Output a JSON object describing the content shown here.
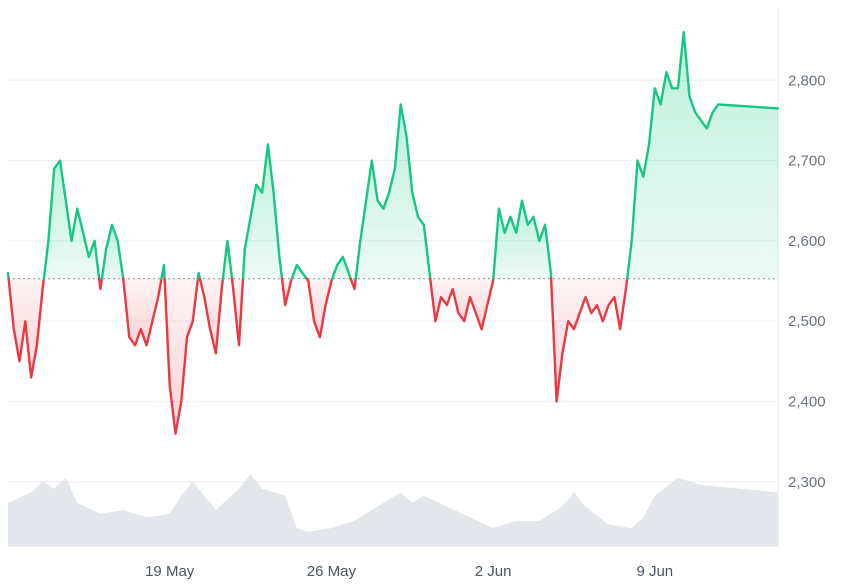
{
  "chart_data": {
    "type": "area",
    "title": "",
    "xlabel": "",
    "ylabel": "",
    "baseline": 2553,
    "ylim": [
      2220,
      2890
    ],
    "y_ticks": [
      2300,
      2400,
      2500,
      2600,
      2700,
      2800
    ],
    "y_tick_labels": [
      "2,300",
      "2,400",
      "2,500",
      "2,600",
      "2,700",
      "2,800"
    ],
    "x_ticks": [
      {
        "label": "19 May",
        "date": "2025-05-19"
      },
      {
        "label": "26 May",
        "date": "2025-05-26"
      },
      {
        "label": "2 Jun",
        "date": "2025-06-02"
      },
      {
        "label": "9 Jun",
        "date": "2025-06-09"
      }
    ],
    "xlim": [
      "2025-05-12T00:00",
      "2025-06-14T08:00"
    ],
    "colors": {
      "up": "#16c784",
      "down": "#ea3943",
      "up_fill": "#d8f5e7",
      "down_fill": "#fbdcde",
      "volume": "#e3e6ea",
      "grid": "#eceef1",
      "axis": "#e5e7eb",
      "baseline": "#9ca3af"
    },
    "series": [
      {
        "values": [
          [
            "2025-05-12T00:00",
            2560
          ],
          [
            "2025-05-12T06:00",
            2490
          ],
          [
            "2025-05-12T12:00",
            2450
          ],
          [
            "2025-05-12T18:00",
            2500
          ],
          [
            "2025-05-13T00:00",
            2430
          ],
          [
            "2025-05-13T06:00",
            2470
          ],
          [
            "2025-05-13T12:00",
            2540
          ],
          [
            "2025-05-13T18:00",
            2600
          ],
          [
            "2025-05-14T00:00",
            2690
          ],
          [
            "2025-05-14T06:00",
            2700
          ],
          [
            "2025-05-14T12:00",
            2650
          ],
          [
            "2025-05-14T18:00",
            2600
          ],
          [
            "2025-05-15T00:00",
            2640
          ],
          [
            "2025-05-15T06:00",
            2610
          ],
          [
            "2025-05-15T12:00",
            2580
          ],
          [
            "2025-05-15T18:00",
            2600
          ],
          [
            "2025-05-16T00:00",
            2540
          ],
          [
            "2025-05-16T06:00",
            2590
          ],
          [
            "2025-05-16T12:00",
            2620
          ],
          [
            "2025-05-16T18:00",
            2600
          ],
          [
            "2025-05-17T00:00",
            2550
          ],
          [
            "2025-05-17T06:00",
            2480
          ],
          [
            "2025-05-17T12:00",
            2470
          ],
          [
            "2025-05-17T18:00",
            2490
          ],
          [
            "2025-05-18T00:00",
            2470
          ],
          [
            "2025-05-18T06:00",
            2500
          ],
          [
            "2025-05-18T12:00",
            2530
          ],
          [
            "2025-05-18T18:00",
            2570
          ],
          [
            "2025-05-19T00:00",
            2420
          ],
          [
            "2025-05-19T06:00",
            2360
          ],
          [
            "2025-05-19T12:00",
            2400
          ],
          [
            "2025-05-19T18:00",
            2480
          ],
          [
            "2025-05-20T00:00",
            2500
          ],
          [
            "2025-05-20T06:00",
            2560
          ],
          [
            "2025-05-20T12:00",
            2530
          ],
          [
            "2025-05-20T18:00",
            2490
          ],
          [
            "2025-05-21T00:00",
            2460
          ],
          [
            "2025-05-21T06:00",
            2540
          ],
          [
            "2025-05-21T12:00",
            2600
          ],
          [
            "2025-05-21T18:00",
            2540
          ],
          [
            "2025-05-22T00:00",
            2470
          ],
          [
            "2025-05-22T06:00",
            2590
          ],
          [
            "2025-05-22T12:00",
            2630
          ],
          [
            "2025-05-22T18:00",
            2670
          ],
          [
            "2025-05-23T00:00",
            2660
          ],
          [
            "2025-05-23T06:00",
            2720
          ],
          [
            "2025-05-23T12:00",
            2660
          ],
          [
            "2025-05-23T18:00",
            2580
          ],
          [
            "2025-05-24T00:00",
            2520
          ],
          [
            "2025-05-24T06:00",
            2550
          ],
          [
            "2025-05-24T12:00",
            2570
          ],
          [
            "2025-05-24T18:00",
            2560
          ],
          [
            "2025-05-25T00:00",
            2550
          ],
          [
            "2025-05-25T06:00",
            2500
          ],
          [
            "2025-05-25T12:00",
            2480
          ],
          [
            "2025-05-25T18:00",
            2520
          ],
          [
            "2025-05-26T00:00",
            2550
          ],
          [
            "2025-05-26T06:00",
            2570
          ],
          [
            "2025-05-26T12:00",
            2580
          ],
          [
            "2025-05-26T18:00",
            2560
          ],
          [
            "2025-05-27T00:00",
            2540
          ],
          [
            "2025-05-27T06:00",
            2600
          ],
          [
            "2025-05-27T12:00",
            2650
          ],
          [
            "2025-05-27T18:00",
            2700
          ],
          [
            "2025-05-28T00:00",
            2650
          ],
          [
            "2025-05-28T06:00",
            2640
          ],
          [
            "2025-05-28T12:00",
            2660
          ],
          [
            "2025-05-28T18:00",
            2690
          ],
          [
            "2025-05-29T00:00",
            2770
          ],
          [
            "2025-05-29T06:00",
            2730
          ],
          [
            "2025-05-29T12:00",
            2660
          ],
          [
            "2025-05-29T18:00",
            2630
          ],
          [
            "2025-05-30T00:00",
            2620
          ],
          [
            "2025-05-30T06:00",
            2560
          ],
          [
            "2025-05-30T12:00",
            2500
          ],
          [
            "2025-05-30T18:00",
            2530
          ],
          [
            "2025-05-31T00:00",
            2520
          ],
          [
            "2025-05-31T06:00",
            2540
          ],
          [
            "2025-05-31T12:00",
            2510
          ],
          [
            "2025-05-31T18:00",
            2500
          ],
          [
            "2025-06-01T00:00",
            2530
          ],
          [
            "2025-06-01T06:00",
            2510
          ],
          [
            "2025-06-01T12:00",
            2490
          ],
          [
            "2025-06-01T18:00",
            2520
          ],
          [
            "2025-06-02T00:00",
            2550
          ],
          [
            "2025-06-02T06:00",
            2640
          ],
          [
            "2025-06-02T12:00",
            2610
          ],
          [
            "2025-06-02T18:00",
            2630
          ],
          [
            "2025-06-03T00:00",
            2610
          ],
          [
            "2025-06-03T06:00",
            2650
          ],
          [
            "2025-06-03T12:00",
            2620
          ],
          [
            "2025-06-03T18:00",
            2630
          ],
          [
            "2025-06-04T00:00",
            2600
          ],
          [
            "2025-06-04T06:00",
            2620
          ],
          [
            "2025-06-04T12:00",
            2560
          ],
          [
            "2025-06-04T18:00",
            2400
          ],
          [
            "2025-06-05T00:00",
            2460
          ],
          [
            "2025-06-05T06:00",
            2500
          ],
          [
            "2025-06-05T12:00",
            2490
          ],
          [
            "2025-06-05T18:00",
            2510
          ],
          [
            "2025-06-06T00:00",
            2530
          ],
          [
            "2025-06-06T06:00",
            2510
          ],
          [
            "2025-06-06T12:00",
            2520
          ],
          [
            "2025-06-06T18:00",
            2500
          ],
          [
            "2025-06-07T00:00",
            2520
          ],
          [
            "2025-06-07T06:00",
            2530
          ],
          [
            "2025-06-07T12:00",
            2490
          ],
          [
            "2025-06-07T18:00",
            2540
          ],
          [
            "2025-06-08T00:00",
            2600
          ],
          [
            "2025-06-08T06:00",
            2700
          ],
          [
            "2025-06-08T12:00",
            2680
          ],
          [
            "2025-06-08T18:00",
            2720
          ],
          [
            "2025-06-09T00:00",
            2790
          ],
          [
            "2025-06-09T06:00",
            2770
          ],
          [
            "2025-06-09T12:00",
            2810
          ],
          [
            "2025-06-09T18:00",
            2790
          ],
          [
            "2025-06-10T00:00",
            2790
          ],
          [
            "2025-06-10T06:00",
            2860
          ],
          [
            "2025-06-10T12:00",
            2780
          ],
          [
            "2025-06-10T18:00",
            2760
          ],
          [
            "2025-06-11T00:00",
            2750
          ],
          [
            "2025-06-11T06:00",
            2740
          ],
          [
            "2025-06-11T12:00",
            2760
          ],
          [
            "2025-06-11T18:00",
            2770
          ],
          [
            "2025-06-14T08:00",
            2765
          ]
        ]
      }
    ],
    "volume": [
      [
        "2025-05-12T00:00",
        0.6
      ],
      [
        "2025-05-13T00:00",
        0.75
      ],
      [
        "2025-05-13T12:00",
        0.9
      ],
      [
        "2025-05-14T00:00",
        0.8
      ],
      [
        "2025-05-14T12:00",
        0.95
      ],
      [
        "2025-05-15T00:00",
        0.6
      ],
      [
        "2025-05-16T00:00",
        0.45
      ],
      [
        "2025-05-17T00:00",
        0.5
      ],
      [
        "2025-05-18T00:00",
        0.4
      ],
      [
        "2025-05-19T00:00",
        0.45
      ],
      [
        "2025-05-19T12:00",
        0.7
      ],
      [
        "2025-05-20T00:00",
        0.9
      ],
      [
        "2025-05-20T12:00",
        0.7
      ],
      [
        "2025-05-21T00:00",
        0.5
      ],
      [
        "2025-05-22T00:00",
        0.8
      ],
      [
        "2025-05-22T12:00",
        1.0
      ],
      [
        "2025-05-23T00:00",
        0.8
      ],
      [
        "2025-05-24T00:00",
        0.7
      ],
      [
        "2025-05-24T12:00",
        0.25
      ],
      [
        "2025-05-25T00:00",
        0.2
      ],
      [
        "2025-05-26T00:00",
        0.25
      ],
      [
        "2025-05-27T00:00",
        0.35
      ],
      [
        "2025-05-28T00:00",
        0.55
      ],
      [
        "2025-05-29T00:00",
        0.75
      ],
      [
        "2025-05-29T12:00",
        0.6
      ],
      [
        "2025-05-30T00:00",
        0.7
      ],
      [
        "2025-05-31T00:00",
        0.55
      ],
      [
        "2025-06-01T00:00",
        0.4
      ],
      [
        "2025-06-02T00:00",
        0.25
      ],
      [
        "2025-06-03T00:00",
        0.35
      ],
      [
        "2025-06-04T00:00",
        0.35
      ],
      [
        "2025-06-05T00:00",
        0.55
      ],
      [
        "2025-06-05T12:00",
        0.75
      ],
      [
        "2025-06-06T00:00",
        0.55
      ],
      [
        "2025-06-07T00:00",
        0.3
      ],
      [
        "2025-06-08T00:00",
        0.25
      ],
      [
        "2025-06-08T12:00",
        0.4
      ],
      [
        "2025-06-09T00:00",
        0.7
      ],
      [
        "2025-06-10T00:00",
        0.95
      ],
      [
        "2025-06-11T00:00",
        0.85
      ],
      [
        "2025-06-14T08:00",
        0.75
      ]
    ]
  }
}
